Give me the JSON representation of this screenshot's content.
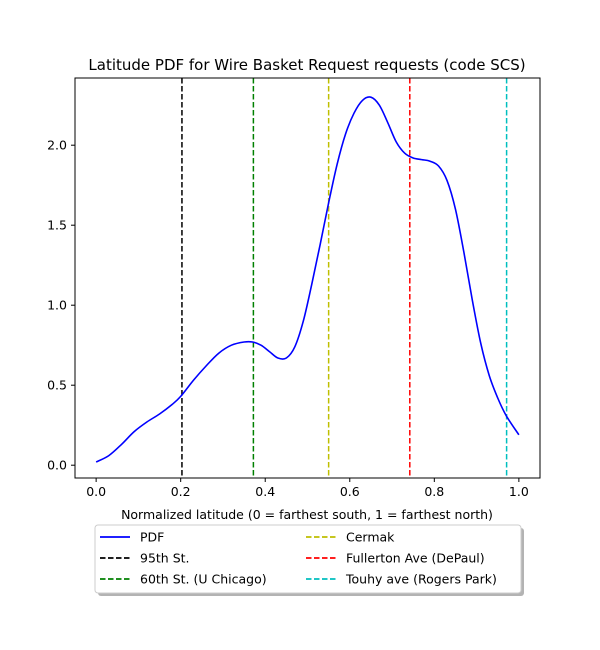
{
  "chart_data": {
    "type": "line",
    "title": "Latitude PDF for Wire Basket Request  requests (code SCS)",
    "xlabel": "Normalized latitude (0 = farthest south, 1 = farthest north)",
    "ylabel": "",
    "xlim": [
      -0.05,
      1.05
    ],
    "ylim": [
      -0.08,
      2.42
    ],
    "xticks": [
      0.0,
      0.2,
      0.4,
      0.6,
      0.8,
      1.0
    ],
    "xtick_labels": [
      "0.0",
      "0.2",
      "0.4",
      "0.6",
      "0.8",
      "1.0"
    ],
    "yticks": [
      0.0,
      0.5,
      1.0,
      1.5,
      2.0
    ],
    "ytick_labels": [
      "0.0",
      "0.5",
      "1.0",
      "1.5",
      "2.0"
    ],
    "grid": false,
    "legend_placement": "below",
    "series": [
      {
        "name": "PDF",
        "color": "#0000ff",
        "style": "solid",
        "x": [
          0.0,
          0.03,
          0.06,
          0.09,
          0.12,
          0.15,
          0.18,
          0.2,
          0.23,
          0.26,
          0.29,
          0.32,
          0.35,
          0.37,
          0.39,
          0.41,
          0.43,
          0.45,
          0.47,
          0.49,
          0.51,
          0.53,
          0.55,
          0.57,
          0.59,
          0.61,
          0.63,
          0.65,
          0.67,
          0.69,
          0.71,
          0.73,
          0.75,
          0.77,
          0.79,
          0.81,
          0.83,
          0.85,
          0.87,
          0.89,
          0.91,
          0.93,
          0.95,
          0.97,
          1.0
        ],
        "y": [
          0.02,
          0.06,
          0.13,
          0.21,
          0.27,
          0.32,
          0.38,
          0.43,
          0.53,
          0.62,
          0.7,
          0.75,
          0.77,
          0.77,
          0.75,
          0.71,
          0.67,
          0.67,
          0.74,
          0.9,
          1.13,
          1.38,
          1.64,
          1.88,
          2.07,
          2.2,
          2.28,
          2.3,
          2.25,
          2.14,
          2.02,
          1.95,
          1.92,
          1.91,
          1.9,
          1.87,
          1.78,
          1.6,
          1.33,
          1.03,
          0.76,
          0.56,
          0.42,
          0.31,
          0.19
        ]
      }
    ],
    "vlines": [
      {
        "name": "95th St.",
        "x": 0.203,
        "color": "#000000",
        "style": "dashed"
      },
      {
        "name": "60th St. (U Chicago)",
        "x": 0.372,
        "color": "#008000",
        "style": "dashed"
      },
      {
        "name": "Cermak",
        "x": 0.55,
        "color": "#bfbf00",
        "style": "dashed"
      },
      {
        "name": "Fullerton Ave (DePaul)",
        "x": 0.742,
        "color": "#ff0000",
        "style": "dashed"
      },
      {
        "name": "Touhy ave (Rogers Park)",
        "x": 0.971,
        "color": "#00bfbf",
        "style": "dashed"
      }
    ],
    "legend": {
      "columns": [
        [
          "PDF",
          "95th St.",
          "60th St. (U Chicago)"
        ],
        [
          "Cermak",
          "Fullerton Ave (DePaul)",
          "Touhy ave (Rogers Park)"
        ]
      ]
    }
  }
}
